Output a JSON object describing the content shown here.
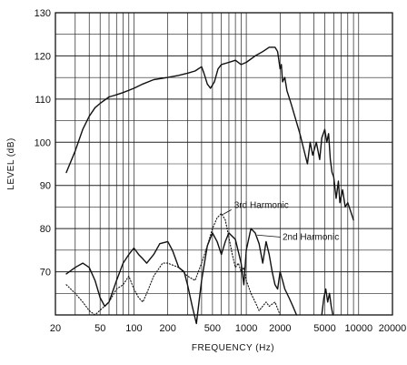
{
  "chart_data": {
    "type": "line",
    "xlabel": "FREQUENCY (Hz)",
    "ylabel": "LEVEL (dB)",
    "x_scale": "log",
    "xlim": [
      20,
      20000
    ],
    "ylim": [
      60,
      130
    ],
    "x_ticks": [
      {
        "value": 20,
        "label": "20"
      },
      {
        "value": 50,
        "label": "50"
      },
      {
        "value": 100,
        "label": "100"
      },
      {
        "value": 200,
        "label": "200"
      },
      {
        "value": 500,
        "label": "500"
      },
      {
        "value": 1000,
        "label": "1000"
      },
      {
        "value": 2000,
        "label": "2000"
      },
      {
        "value": 5000,
        "label": "5000"
      },
      {
        "value": 10000,
        "label": "10000"
      },
      {
        "value": 20000,
        "label": "20000"
      }
    ],
    "y_ticks": [
      {
        "value": 70,
        "label": "70"
      },
      {
        "value": 80,
        "label": "80"
      },
      {
        "value": 90,
        "label": "90"
      },
      {
        "value": 100,
        "label": "100"
      },
      {
        "value": 110,
        "label": "110"
      },
      {
        "value": 120,
        "label": "120"
      },
      {
        "value": 130,
        "label": "130"
      }
    ],
    "grid": true,
    "annotations": [
      {
        "text": "3rd Harmonic",
        "x": 780,
        "y": 84.8
      },
      {
        "text": "2nd Harmonic",
        "x": 2100,
        "y": 77.4
      }
    ],
    "series": [
      {
        "style": "solid",
        "points": [
          [
            25,
            93
          ],
          [
            30,
            98
          ],
          [
            35,
            103
          ],
          [
            40,
            106
          ],
          [
            45,
            108
          ],
          [
            50,
            109
          ],
          [
            60,
            110.5
          ],
          [
            70,
            111
          ],
          [
            80,
            111.5
          ],
          [
            100,
            112.5
          ],
          [
            120,
            113.5
          ],
          [
            150,
            114.5
          ],
          [
            200,
            115
          ],
          [
            250,
            115.5
          ],
          [
            300,
            116
          ],
          [
            350,
            116.5
          ],
          [
            400,
            117.5
          ],
          [
            420,
            116
          ],
          [
            450,
            113.5
          ],
          [
            480,
            112.5
          ],
          [
            520,
            114
          ],
          [
            560,
            117
          ],
          [
            600,
            118
          ],
          [
            700,
            118.5
          ],
          [
            800,
            119
          ],
          [
            900,
            118
          ],
          [
            1000,
            118.5
          ],
          [
            1200,
            120
          ],
          [
            1400,
            121
          ],
          [
            1600,
            122
          ],
          [
            1800,
            122
          ],
          [
            1900,
            121
          ],
          [
            2000,
            117
          ],
          [
            2050,
            118
          ],
          [
            2100,
            114
          ],
          [
            2200,
            115
          ],
          [
            2300,
            112
          ],
          [
            2500,
            109
          ],
          [
            2700,
            106
          ],
          [
            3000,
            102
          ],
          [
            3200,
            99
          ],
          [
            3500,
            95
          ],
          [
            3700,
            100
          ],
          [
            3900,
            97
          ],
          [
            4200,
            100
          ],
          [
            4500,
            96
          ],
          [
            4700,
            101
          ],
          [
            5000,
            103
          ],
          [
            5200,
            100
          ],
          [
            5400,
            102
          ],
          [
            5600,
            96
          ],
          [
            5800,
            93
          ],
          [
            6000,
            92
          ],
          [
            6300,
            87
          ],
          [
            6600,
            91
          ],
          [
            6800,
            86
          ],
          [
            7200,
            89
          ],
          [
            7600,
            85
          ],
          [
            8000,
            86
          ],
          [
            8500,
            84
          ],
          [
            9000,
            82
          ]
        ]
      },
      {
        "name": "2nd Harmonic",
        "style": "solid",
        "points": [
          [
            25,
            69.5
          ],
          [
            30,
            71
          ],
          [
            35,
            72
          ],
          [
            40,
            71
          ],
          [
            45,
            68
          ],
          [
            50,
            64
          ],
          [
            55,
            62
          ],
          [
            60,
            63
          ],
          [
            70,
            68
          ],
          [
            80,
            72
          ],
          [
            90,
            74
          ],
          [
            100,
            75.5
          ],
          [
            110,
            74
          ],
          [
            120,
            73
          ],
          [
            130,
            72
          ],
          [
            150,
            74
          ],
          [
            170,
            76.5
          ],
          [
            200,
            77
          ],
          [
            220,
            75
          ],
          [
            250,
            71
          ],
          [
            280,
            70
          ],
          [
            300,
            67
          ],
          [
            330,
            62
          ],
          [
            360,
            58
          ],
          [
            400,
            68
          ],
          [
            450,
            76
          ],
          [
            500,
            79
          ],
          [
            550,
            77
          ],
          [
            600,
            74
          ],
          [
            650,
            77
          ],
          [
            700,
            79
          ],
          [
            800,
            77.5
          ],
          [
            900,
            72
          ],
          [
            950,
            67
          ],
          [
            1000,
            75
          ],
          [
            1100,
            80
          ],
          [
            1200,
            79
          ],
          [
            1300,
            76.5
          ],
          [
            1400,
            72
          ],
          [
            1500,
            77
          ],
          [
            1600,
            74
          ],
          [
            1700,
            70
          ],
          [
            1800,
            67
          ],
          [
            1900,
            66
          ],
          [
            2000,
            70
          ],
          [
            2100,
            68
          ],
          [
            2200,
            66
          ],
          [
            2400,
            64
          ],
          [
            2600,
            62
          ],
          [
            2800,
            60
          ]
        ]
      },
      {
        "name": "3rd Harmonic",
        "style": "dotted",
        "points": [
          [
            25,
            67
          ],
          [
            30,
            65
          ],
          [
            35,
            63
          ],
          [
            40,
            61
          ],
          [
            45,
            60
          ],
          [
            60,
            63
          ],
          [
            70,
            66
          ],
          [
            80,
            67
          ],
          [
            90,
            69
          ],
          [
            100,
            66
          ],
          [
            110,
            64
          ],
          [
            120,
            63
          ],
          [
            130,
            65
          ],
          [
            150,
            69
          ],
          [
            180,
            72
          ],
          [
            200,
            72
          ],
          [
            250,
            71
          ],
          [
            300,
            69
          ],
          [
            350,
            68
          ],
          [
            400,
            72
          ],
          [
            450,
            76
          ],
          [
            500,
            80
          ],
          [
            550,
            82.5
          ],
          [
            600,
            83.5
          ],
          [
            650,
            82
          ],
          [
            700,
            78
          ],
          [
            750,
            74
          ],
          [
            800,
            71
          ],
          [
            850,
            72
          ],
          [
            900,
            70
          ],
          [
            950,
            71
          ],
          [
            1000,
            68
          ],
          [
            1100,
            65
          ],
          [
            1200,
            63
          ],
          [
            1300,
            61
          ],
          [
            1500,
            63
          ],
          [
            1600,
            62
          ],
          [
            1800,
            63
          ],
          [
            2000,
            60
          ]
        ]
      },
      {
        "style": "solid",
        "points": [
          [
            4700,
            60
          ],
          [
            4900,
            64
          ],
          [
            5100,
            66
          ],
          [
            5300,
            63
          ],
          [
            5500,
            65
          ],
          [
            5700,
            62
          ],
          [
            5900,
            60
          ]
        ]
      }
    ]
  }
}
